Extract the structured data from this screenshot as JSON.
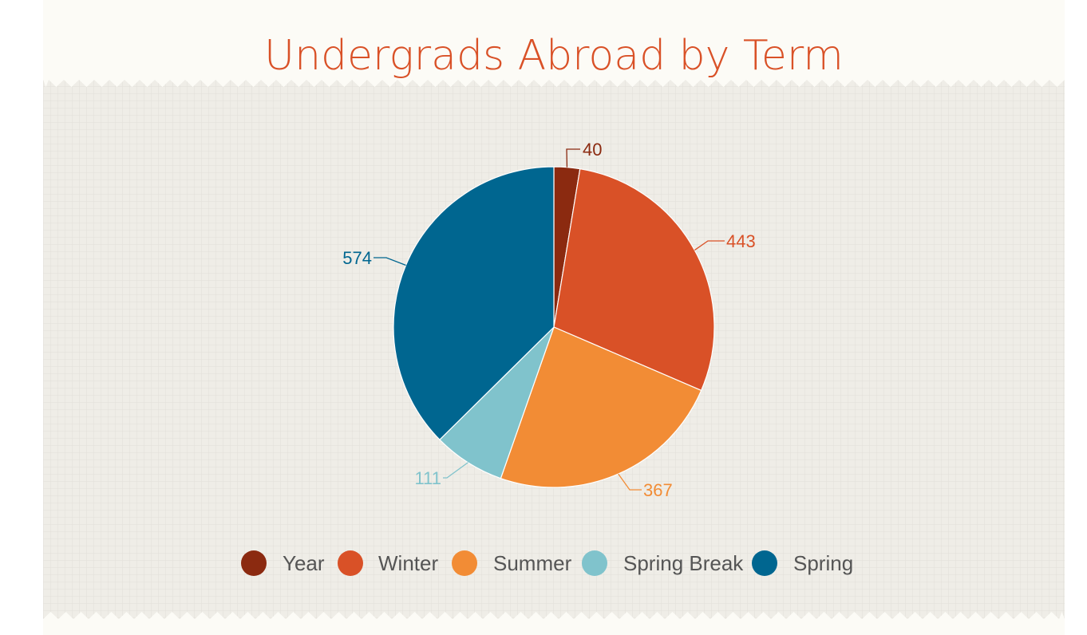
{
  "chart_data": {
    "type": "pie",
    "title": "Undergrads Abroad by Term",
    "categories": [
      "Year",
      "Winter",
      "Summer",
      "Spring Break",
      "Spring"
    ],
    "values": [
      40,
      443,
      367,
      111,
      574
    ],
    "colors": [
      "#8b2a10",
      "#d95127",
      "#f28c35",
      "#80c3cc",
      "#006690"
    ],
    "start_angle_degrees": 0,
    "direction": "clockwise",
    "data_labels": true,
    "legend_position": "bottom"
  },
  "theme": {
    "panel_color": "#efede7",
    "header_color": "#fcfbf6",
    "grid_color": "#e2dfd8",
    "legend_text_color": "#555555",
    "slice_border_color": "#ffffff"
  }
}
